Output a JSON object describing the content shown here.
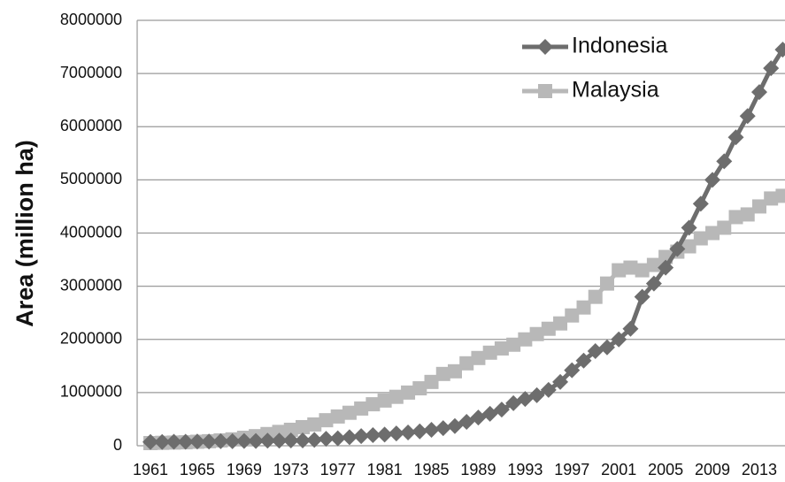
{
  "chart_data": {
    "type": "line",
    "ylabel": "Area (million ha)",
    "categories": [
      "1961",
      null,
      null,
      null,
      "1965",
      null,
      null,
      null,
      "1969",
      null,
      null,
      null,
      "1973",
      null,
      null,
      null,
      "1977",
      null,
      null,
      null,
      "1981",
      null,
      null,
      null,
      "1985",
      null,
      null,
      null,
      "1989",
      null,
      null,
      null,
      "1993",
      null,
      null,
      null,
      "1997",
      null,
      null,
      null,
      "2001",
      null,
      null,
      null,
      "2005",
      null,
      null,
      null,
      "2009",
      null,
      null,
      null,
      "2013",
      null,
      null
    ],
    "series": [
      {
        "name": "Indonesia",
        "color": "#6d6d6d",
        "marker": "diamond",
        "values": [
          70000,
          70000,
          75000,
          75000,
          80000,
          80000,
          85000,
          85000,
          90000,
          90000,
          95000,
          95000,
          100000,
          100000,
          110000,
          130000,
          140000,
          160000,
          180000,
          200000,
          210000,
          230000,
          250000,
          270000,
          300000,
          330000,
          370000,
          450000,
          530000,
          600000,
          680000,
          800000,
          880000,
          950000,
          1050000,
          1200000,
          1420000,
          1600000,
          1780000,
          1850000,
          2000000,
          2200000,
          2800000,
          3050000,
          3350000,
          3700000,
          4100000,
          4550000,
          5000000,
          5350000,
          5800000,
          6200000,
          6650000,
          7100000,
          7450000
        ]
      },
      {
        "name": "Malaysia",
        "color": "#b8b8b8",
        "marker": "square",
        "values": [
          50000,
          55000,
          60000,
          65000,
          75000,
          85000,
          100000,
          120000,
          150000,
          180000,
          220000,
          260000,
          300000,
          350000,
          400000,
          480000,
          550000,
          620000,
          700000,
          780000,
          850000,
          920000,
          1000000,
          1080000,
          1200000,
          1350000,
          1400000,
          1550000,
          1650000,
          1750000,
          1830000,
          1900000,
          2000000,
          2100000,
          2200000,
          2300000,
          2450000,
          2600000,
          2800000,
          3050000,
          3300000,
          3350000,
          3300000,
          3400000,
          3550000,
          3650000,
          3750000,
          3900000,
          4000000,
          4100000,
          4300000,
          4350000,
          4500000,
          4650000,
          4700000
        ]
      }
    ],
    "ylim": [
      0,
      8000000
    ],
    "yticks": [
      0,
      1000000,
      2000000,
      3000000,
      4000000,
      5000000,
      6000000,
      7000000,
      8000000
    ],
    "grid": true,
    "legend": "upper right"
  }
}
